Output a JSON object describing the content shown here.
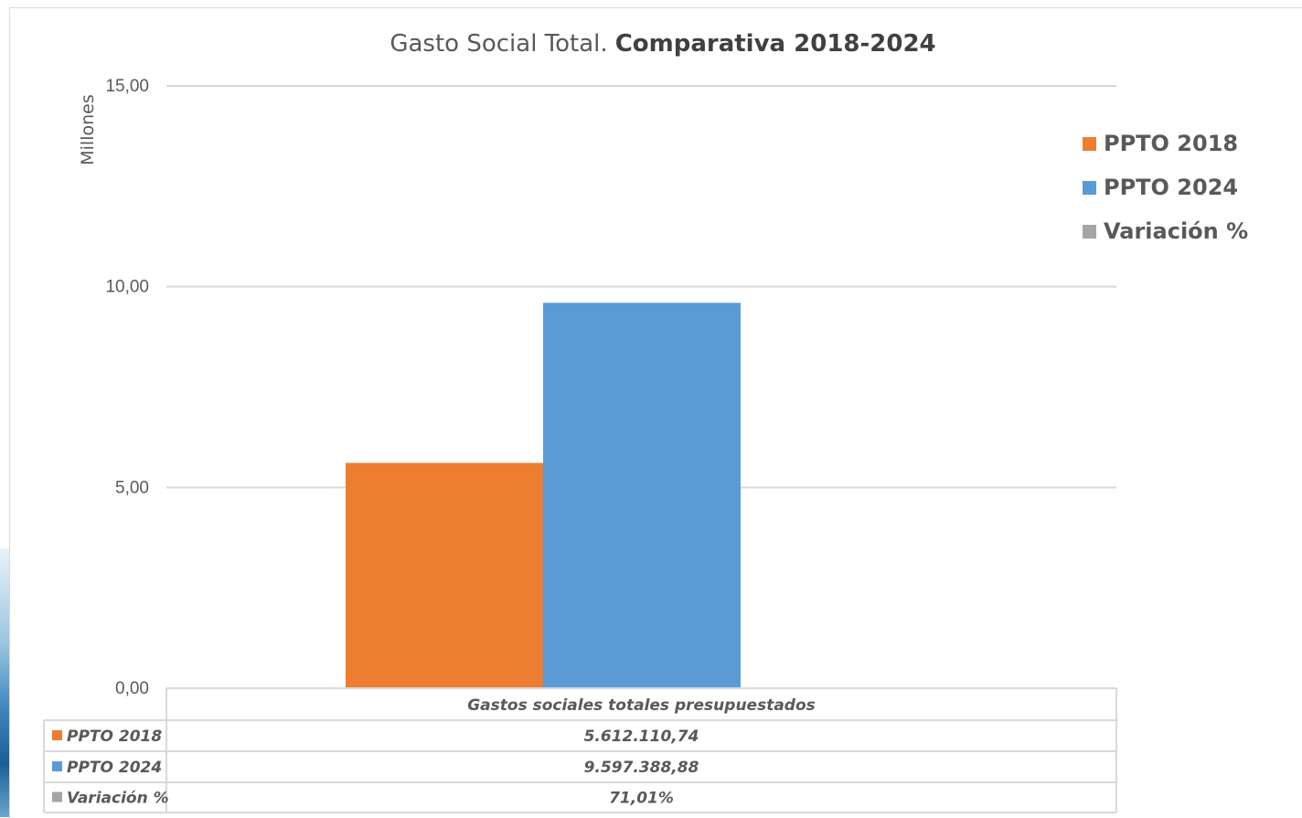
{
  "chart_data": {
    "type": "bar",
    "title": "Gasto Social Total.",
    "title_bold": "Comparativa 2018-2024",
    "ylabel": "Millones",
    "ylim": [
      0,
      15
    ],
    "yticks": [
      "0,00",
      "5,00",
      "10,00",
      "15,00"
    ],
    "ytick_values": [
      0,
      5,
      10,
      15
    ],
    "grid": true,
    "legend_position": "right",
    "categories": [
      "Gastos sociales totales presupuestados"
    ],
    "series": [
      {
        "name": "PPTO 2018",
        "values": [
          5.61211074
        ],
        "color": "#ed7d31"
      },
      {
        "name": "PPTO 2024",
        "values": [
          9.59738888
        ],
        "color": "#5b9bd5"
      },
      {
        "name": "Variación %",
        "values": [
          0.7101
        ],
        "color": "#a5a5a5"
      }
    ],
    "data_table": {
      "header": "Gastos sociales totales presupuestados",
      "rows": [
        {
          "label": "PPTO 2018",
          "value": "5.612.110,74",
          "color": "#ed7d31"
        },
        {
          "label": "PPTO 2024",
          "value": "9.597.388,88",
          "color": "#5b9bd5"
        },
        {
          "label": "Variación %",
          "value": "71,01%",
          "color": "#a5a5a5"
        }
      ]
    }
  }
}
